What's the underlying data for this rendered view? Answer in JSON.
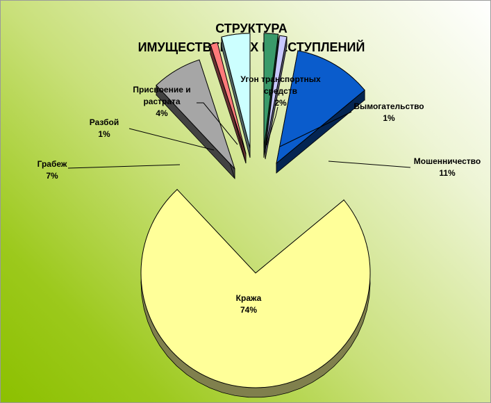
{
  "chart_data": {
    "type": "pie",
    "variant": "3d-exploded",
    "title": [
      "СТРУКТУРА",
      "ИМУЩЕСТВЕННЫХ ПРЕСТУПЛЕНИЙ"
    ],
    "legend": "none",
    "slices": [
      {
        "key": "ugon",
        "lines": [
          "Угон транспортных",
          "средств"
        ],
        "value": 2,
        "pct": "2%",
        "color": "#3a9a6a"
      },
      {
        "key": "vymog",
        "lines": [
          "Вымогательство"
        ],
        "value": 1,
        "pct": "1%",
        "color": "#c8c8ff"
      },
      {
        "key": "mosh",
        "lines": [
          "Мошенничество"
        ],
        "value": 11,
        "pct": "11%",
        "color": "#0a5ccc"
      },
      {
        "key": "krazha",
        "lines": [
          "Кража"
        ],
        "value": 74,
        "pct": "74%",
        "color": "#ffff99"
      },
      {
        "key": "grabezh",
        "lines": [
          "Грабеж"
        ],
        "value": 7,
        "pct": "7%",
        "color": "#a6a6a6"
      },
      {
        "key": "razboy",
        "lines": [
          "Разбой"
        ],
        "value": 1,
        "pct": "1%",
        "color": "#ff7a7a"
      },
      {
        "key": "prisv",
        "lines": [
          "Присвоение и",
          "растрата"
        ],
        "value": 4,
        "pct": "4%",
        "color": "#ccffff"
      }
    ]
  }
}
